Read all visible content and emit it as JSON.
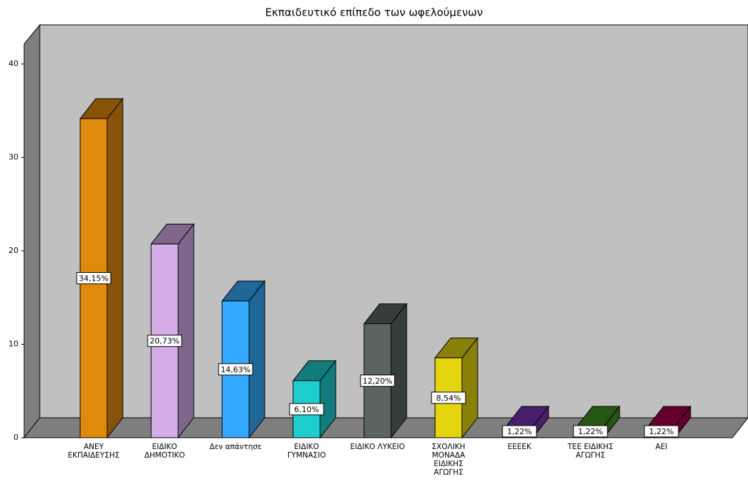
{
  "chart_data": {
    "type": "bar3d",
    "title": "Εκπαιδευτικό επίπεδο των ωφελούμενων",
    "categories": [
      "ΑΝΕΥ ΕΚΠΑΙΔΕΥΣΗΣ",
      "ΕΙΔΙΚΟ ΔΗΜΟΤΙΚΟ",
      "Δεν απάντησε",
      "ΕΙΔΙΚΟ ΓΥΜΝΑΣΙΟ",
      "ΕΙΔΙΚΟ ΛΥΚΕΙΟ",
      "ΣΧΟΛΙΚΗ ΜΟΝΑΔΑ ΕΙΔΙΚΗΣ ΑΓΩΓΗΣ",
      "ΕΕΕΕΚ",
      "ΤΕΕ ΕΙΔΙΚΗΣ ΑΓΩΓΗΣ",
      "ΑΕΙ"
    ],
    "values": [
      34.15,
      20.73,
      14.63,
      6.1,
      12.2,
      8.54,
      1.22,
      1.22,
      1.22
    ],
    "value_labels": [
      "34,15%",
      "20,73%",
      "14,63%",
      "6,10%",
      "12,20%",
      "8,54%",
      "1,22%",
      "1,22%",
      "1,22%"
    ],
    "colors": [
      "#e08a0d",
      "#d3ace8",
      "#33aaff",
      "#1ecece",
      "#5b6560",
      "#e4d510",
      "#7a34b0",
      "#3f8f20",
      "#a8004c"
    ],
    "ylim": [
      0,
      40
    ],
    "yticks": [
      0,
      10,
      20,
      30,
      40
    ]
  }
}
